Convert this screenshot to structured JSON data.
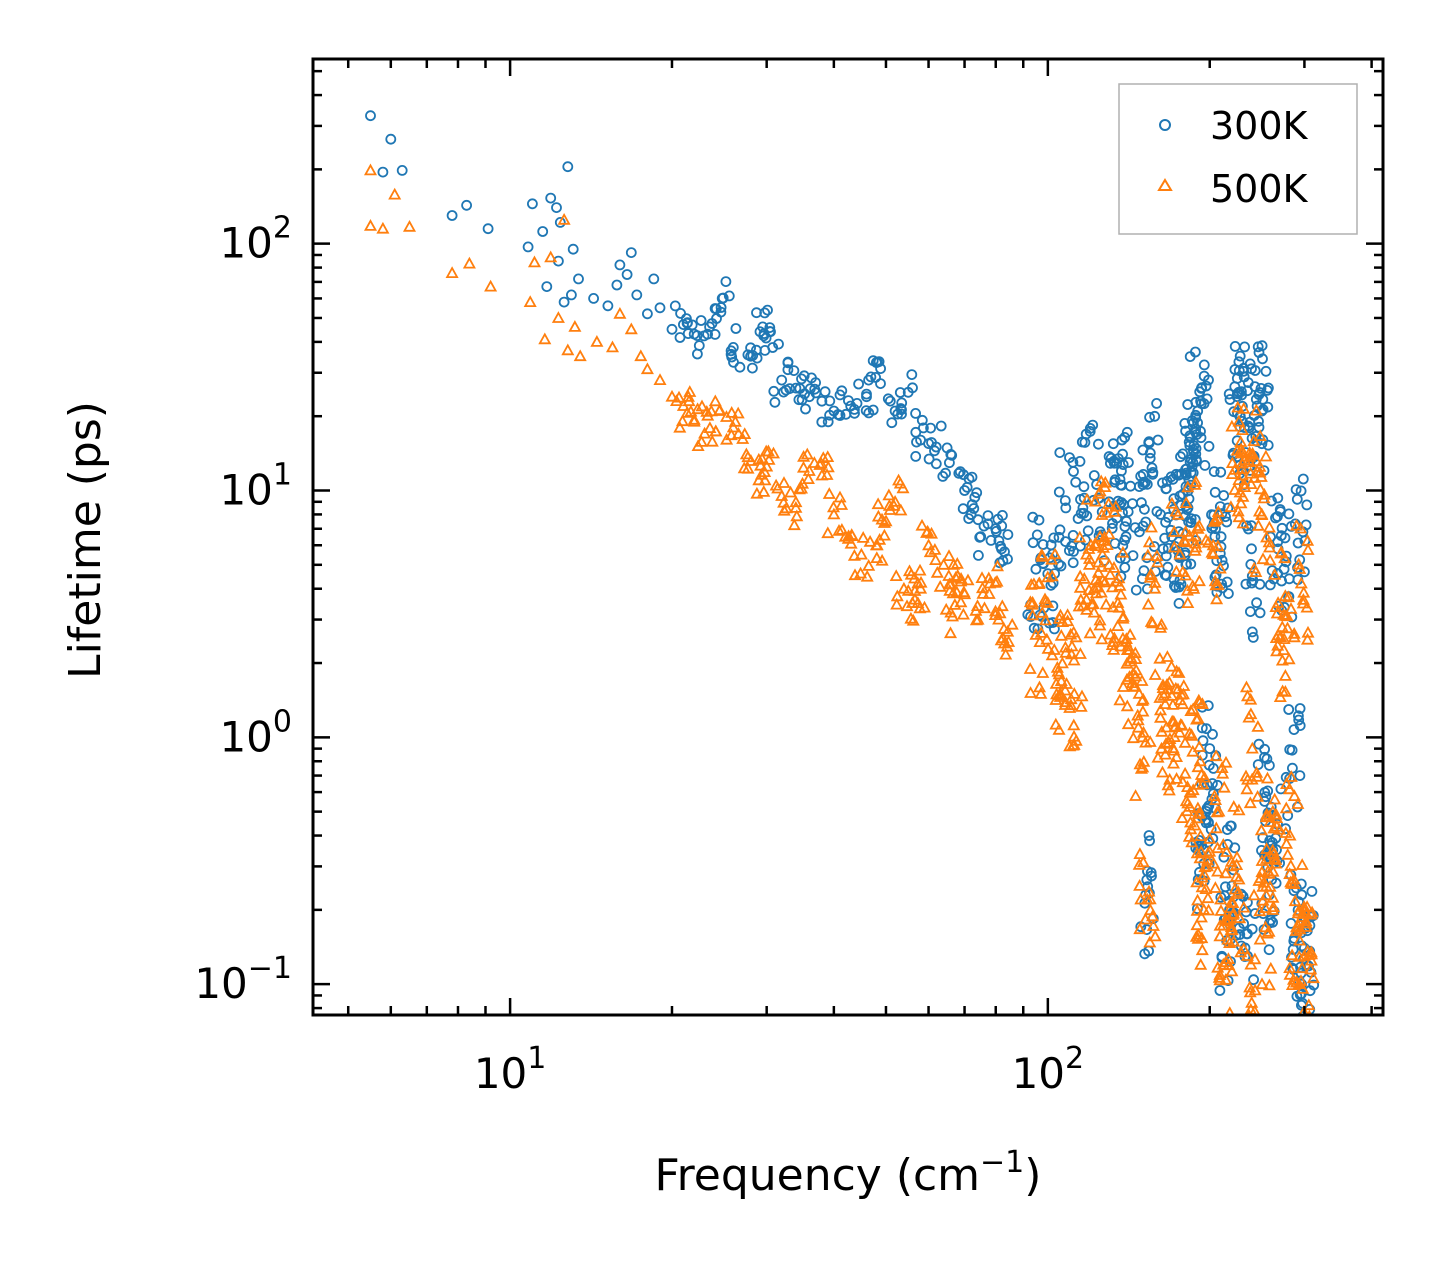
{
  "chart_data": {
    "type": "scatter",
    "title": "",
    "xlabel": "Frequency (cm",
    "xlabel_sup": "−1",
    "xlabel_close": ")",
    "ylabel": "Lifetime (ps)",
    "xscale": "log",
    "yscale": "log",
    "xlim": [
      4.3,
      420
    ],
    "ylim": [
      0.075,
      560
    ],
    "x_ticks": [
      {
        "value": 10,
        "base": "10",
        "exp": "1"
      },
      {
        "value": 100,
        "base": "10",
        "exp": "2"
      }
    ],
    "y_ticks": [
      {
        "value": 0.1,
        "base": "10",
        "exp": "−1"
      },
      {
        "value": 1,
        "base": "10",
        "exp": "0"
      },
      {
        "value": 10,
        "base": "10",
        "exp": "1"
      },
      {
        "value": 100,
        "base": "10",
        "exp": "2"
      }
    ],
    "legend_position": "top-right",
    "colors": {
      "s300": "#1f77b4",
      "s500": "#ff7f0e"
    },
    "series": [
      {
        "name": "300K",
        "marker": "circle",
        "color": "#1f77b4",
        "points": [
          [
            5.5,
            330
          ],
          [
            5.8,
            195
          ],
          [
            6.0,
            265
          ],
          [
            6.3,
            198
          ],
          [
            7.8,
            130
          ],
          [
            8.3,
            143
          ],
          [
            9.1,
            115
          ],
          [
            10.8,
            97
          ],
          [
            11.0,
            145
          ],
          [
            11.5,
            112
          ],
          [
            11.9,
            153
          ],
          [
            12.2,
            140
          ],
          [
            12.4,
            122
          ],
          [
            12.8,
            205
          ],
          [
            11.7,
            67
          ],
          [
            13.1,
            95
          ],
          [
            13.4,
            72
          ],
          [
            12.3,
            85
          ],
          [
            12.6,
            58
          ],
          [
            13.0,
            62
          ],
          [
            14.3,
            60
          ],
          [
            15.2,
            56
          ],
          [
            15.8,
            68
          ],
          [
            16.0,
            82
          ],
          [
            16.5,
            75
          ],
          [
            16.8,
            92
          ],
          [
            17.2,
            62
          ],
          [
            18.0,
            52
          ],
          [
            18.5,
            72
          ],
          [
            19.0,
            55
          ],
          [
            20.0,
            45
          ],
          [
            21.0,
            47
          ],
          [
            22.0,
            43
          ],
          [
            23.5,
            46
          ],
          [
            24.8,
            60
          ],
          [
            26.0,
            38
          ],
          [
            28.0,
            35
          ],
          [
            29.5,
            46
          ],
          [
            30.5,
            44
          ],
          [
            32.0,
            28
          ],
          [
            34.0,
            26
          ],
          [
            36.0,
            24
          ],
          [
            38.0,
            23
          ],
          [
            40.0,
            21
          ],
          [
            43.0,
            22
          ],
          [
            46.0,
            24
          ],
          [
            48.0,
            33
          ],
          [
            52.0,
            21
          ],
          [
            55.0,
            25
          ],
          [
            58.0,
            16
          ],
          [
            62.0,
            15
          ],
          [
            66.0,
            14
          ],
          [
            70.0,
            10
          ],
          [
            72.0,
            8
          ],
          [
            75.0,
            6.5
          ],
          [
            80.0,
            7.0
          ],
          [
            82.0,
            5.8
          ],
          [
            95.0,
            4.8
          ],
          [
            100.0,
            4.6
          ],
          [
            108.0,
            8.5
          ],
          [
            115.0,
            9.2
          ],
          [
            122.0,
            11.5
          ],
          [
            130.0,
            9.0
          ],
          [
            137.0,
            12.0
          ],
          [
            140.0,
            7.5
          ],
          [
            148.0,
            6.8
          ],
          [
            152.0,
            0.23
          ],
          [
            155.0,
            13.5
          ],
          [
            162.0,
            8.0
          ],
          [
            170.0,
            6.5
          ],
          [
            176.0,
            9.5
          ],
          [
            180.0,
            5.6
          ],
          [
            183.0,
            11.0
          ],
          [
            186.0,
            13.0
          ],
          [
            190.0,
            21.0
          ],
          [
            193.0,
            22.5
          ],
          [
            195.0,
            0.35
          ],
          [
            197.0,
            0.45
          ],
          [
            200.0,
            0.9
          ],
          [
            205.0,
            7.0
          ],
          [
            210.0,
            6.5
          ],
          [
            215.0,
            0.15
          ],
          [
            220.0,
            0.25
          ],
          [
            225.0,
            24.0
          ],
          [
            228.0,
            20.0
          ],
          [
            232.0,
            18.0
          ],
          [
            235.0,
            0.16
          ],
          [
            240.0,
            4.5
          ],
          [
            245.0,
            22.0
          ],
          [
            250.0,
            21.0
          ],
          [
            253.0,
            0.55
          ],
          [
            258.0,
            0.23
          ],
          [
            262.0,
            0.35
          ],
          [
            268.0,
            5.8
          ],
          [
            275.0,
            4.8
          ],
          [
            285.0,
            0.75
          ],
          [
            292.0,
            0.2
          ],
          [
            298.0,
            6.8
          ],
          [
            300.0,
            0.14
          ],
          [
            302.0,
            0.12
          ]
        ]
      },
      {
        "name": "500K",
        "marker": "triangle",
        "color": "#ff7f0e",
        "points": [
          [
            5.5,
            198
          ],
          [
            5.5,
            118
          ],
          [
            5.8,
            115
          ],
          [
            6.1,
            158
          ],
          [
            6.5,
            117
          ],
          [
            7.8,
            76
          ],
          [
            8.4,
            83
          ],
          [
            9.2,
            67
          ],
          [
            10.9,
            58
          ],
          [
            11.1,
            84
          ],
          [
            11.9,
            88
          ],
          [
            12.3,
            50
          ],
          [
            12.6,
            125
          ],
          [
            11.6,
            41
          ],
          [
            12.8,
            37
          ],
          [
            13.2,
            46
          ],
          [
            13.5,
            35
          ],
          [
            14.5,
            40
          ],
          [
            15.5,
            38
          ],
          [
            16.0,
            52
          ],
          [
            16.8,
            45
          ],
          [
            17.5,
            35
          ],
          [
            18.0,
            31
          ],
          [
            19.0,
            28
          ],
          [
            20.0,
            24
          ],
          [
            21.0,
            22
          ],
          [
            22.0,
            19
          ],
          [
            23.0,
            17
          ],
          [
            24.5,
            21
          ],
          [
            26.0,
            18
          ],
          [
            27.5,
            14
          ],
          [
            29.0,
            11
          ],
          [
            30.0,
            12.5
          ],
          [
            32.0,
            9.5
          ],
          [
            34.0,
            8.5
          ],
          [
            36.0,
            12.0
          ],
          [
            38.0,
            11.5
          ],
          [
            40.0,
            8.0
          ],
          [
            42.0,
            6.5
          ],
          [
            45.0,
            5.5
          ],
          [
            48.0,
            6.0
          ],
          [
            50.0,
            7.5
          ],
          [
            52.0,
            9.0
          ],
          [
            54.0,
            4.0
          ],
          [
            56.0,
            3.5
          ],
          [
            58.0,
            4.0
          ],
          [
            60.0,
            6.0
          ],
          [
            64.0,
            5.0
          ],
          [
            66.0,
            3.2
          ],
          [
            68.0,
            4.5
          ],
          [
            70.0,
            3.8
          ],
          [
            74.0,
            3.4
          ],
          [
            78.0,
            4.2
          ],
          [
            81.0,
            3.0
          ],
          [
            83.0,
            2.4
          ],
          [
            95.0,
            2.6
          ],
          [
            100.0,
            3.5
          ],
          [
            105.0,
            1.8
          ],
          [
            108.0,
            2.2
          ],
          [
            112.0,
            1.5
          ],
          [
            118.0,
            5.5
          ],
          [
            122.0,
            4.0
          ],
          [
            125.0,
            6.5
          ],
          [
            130.0,
            5.0
          ],
          [
            135.0,
            3.5
          ],
          [
            140.0,
            2.5
          ],
          [
            145.0,
            1.6
          ],
          [
            150.0,
            1.0
          ],
          [
            153.0,
            0.22
          ],
          [
            158.0,
            4.0
          ],
          [
            162.0,
            1.2
          ],
          [
            168.0,
            0.95
          ],
          [
            172.0,
            1.1
          ],
          [
            176.0,
            5.5
          ],
          [
            180.0,
            0.95
          ],
          [
            184.0,
            0.6
          ],
          [
            188.0,
            6.5
          ],
          [
            192.0,
            0.8
          ],
          [
            195.0,
            0.2
          ],
          [
            198.0,
            0.3
          ],
          [
            203.0,
            6.0
          ],
          [
            208.0,
            0.5
          ],
          [
            212.0,
            0.12
          ],
          [
            215.0,
            0.18
          ],
          [
            220.0,
            0.3
          ],
          [
            225.0,
            14.5
          ],
          [
            230.0,
            11.5
          ],
          [
            235.0,
            0.13
          ],
          [
            240.0,
            0.9
          ],
          [
            245.0,
            12.0
          ],
          [
            250.0,
            8.0
          ],
          [
            254.0,
            0.17
          ],
          [
            258.0,
            0.28
          ],
          [
            262.0,
            0.5
          ],
          [
            268.0,
            3.5
          ],
          [
            275.0,
            2.5
          ],
          [
            282.0,
            0.4
          ],
          [
            290.0,
            0.17
          ],
          [
            296.0,
            4.2
          ],
          [
            300.0,
            0.13
          ],
          [
            302.0,
            0.18
          ]
        ]
      }
    ]
  }
}
